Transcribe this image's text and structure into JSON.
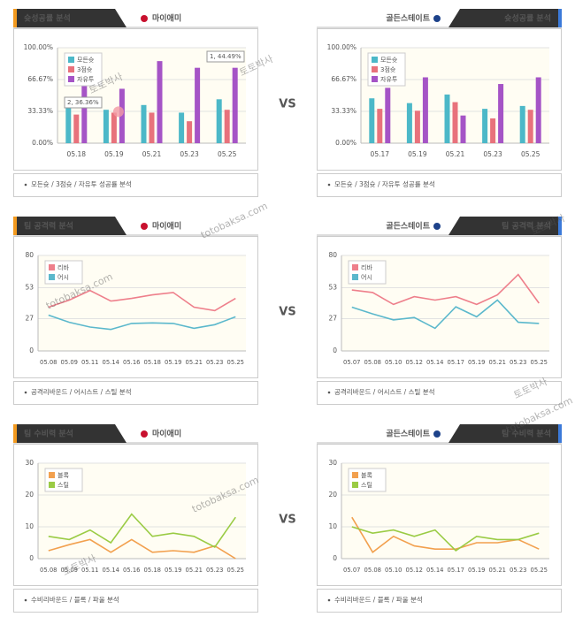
{
  "vs": "VS",
  "watermarks": [
    "토토박사",
    "totobaksa.com"
  ],
  "chart_data": [
    {
      "type": "bar",
      "title": "슛성공률 분석",
      "team": "마이애미",
      "footer": "모든슛 / 3점슛 / 자유투 성공률 분석",
      "categories": [
        "05.18",
        "05.19",
        "05.21",
        "05.23",
        "05.25"
      ],
      "series": [
        {
          "name": "모든슛",
          "color": "#4cb8c8",
          "values": [
            39,
            35,
            40,
            32,
            46
          ]
        },
        {
          "name": "3점슛",
          "color": "#e8727c",
          "values": [
            30,
            32,
            32,
            23,
            35
          ]
        },
        {
          "name": "자유투",
          "color": "#a554c6",
          "values": [
            62,
            57,
            86,
            79,
            79
          ]
        }
      ],
      "annotations": [
        "2, 36.36%",
        "1, 44.49%"
      ],
      "ylim": [
        0,
        100
      ],
      "yticks": [
        {
          "value": 0,
          "label": "0.00%"
        },
        {
          "value": 33.33,
          "label": "33.33%"
        },
        {
          "value": 66.67,
          "label": "66.67%"
        },
        {
          "value": 100,
          "label": "100.00%"
        }
      ],
      "grid": true
    },
    {
      "type": "bar",
      "title": "슛성공률 분석",
      "team": "골든스테이트",
      "footer": "모든슛 / 3점슛 / 자유투 성공률 분석",
      "categories": [
        "05.17",
        "05.19",
        "05.21",
        "05.23",
        "05.25"
      ],
      "series": [
        {
          "name": "모든슛",
          "color": "#4cb8c8",
          "values": [
            47,
            42,
            51,
            36,
            39
          ]
        },
        {
          "name": "3점슛",
          "color": "#e8727c",
          "values": [
            36,
            34,
            43,
            26,
            35
          ]
        },
        {
          "name": "자유투",
          "color": "#a554c6",
          "values": [
            58,
            69,
            29,
            62,
            69
          ]
        }
      ],
      "ylim": [
        0,
        100
      ],
      "yticks": [
        {
          "value": 0,
          "label": "0.00%"
        },
        {
          "value": 33.33,
          "label": "33.33%"
        },
        {
          "value": 66.67,
          "label": "66.67%"
        },
        {
          "value": 100,
          "label": "100.00%"
        }
      ],
      "grid": true
    },
    {
      "type": "line",
      "title": "팀 공격력 분석",
      "team": "마이애미",
      "footer": "공격리바운드 / 어시스트 / 스틸 분석",
      "categories": [
        "05.08",
        "05.09",
        "05.11",
        "05.14",
        "05.16",
        "05.18",
        "05.19",
        "05.21",
        "05.23",
        "05.25"
      ],
      "series": [
        {
          "name": "리바",
          "color": "#ee7f8b",
          "values": [
            36.7,
            42.6,
            50.6,
            41.8,
            44,
            47,
            49,
            36.7,
            33.8,
            44
          ]
        },
        {
          "name": "어시",
          "color": "#5bb8cc",
          "values": [
            30,
            24,
            20,
            18,
            23,
            23.5,
            23,
            19,
            22,
            28.6
          ]
        }
      ],
      "ylim": [
        0,
        80
      ],
      "yticks": [
        0,
        27,
        53,
        80
      ],
      "grid": true
    },
    {
      "type": "line",
      "title": "팀 공격력 분석",
      "team": "골든스테이트",
      "footer": "공격리바운드 / 어시스트 / 스틸 분석",
      "categories": [
        "05.07",
        "05.08",
        "05.10",
        "05.12",
        "05.14",
        "05.17",
        "05.19",
        "05.21",
        "05.23",
        "05.25"
      ],
      "series": [
        {
          "name": "리바",
          "color": "#ee7f8b",
          "values": [
            51,
            49,
            39,
            45.5,
            42.6,
            45.5,
            39,
            47,
            64,
            40
          ]
        },
        {
          "name": "어시",
          "color": "#5bb8cc",
          "values": [
            36.7,
            31,
            26,
            28,
            19,
            37,
            28.6,
            42.6,
            24,
            23
          ]
        }
      ],
      "ylim": [
        0,
        80
      ],
      "yticks": [
        0,
        27,
        53,
        80
      ],
      "grid": true
    },
    {
      "type": "line",
      "title": "팀 수비력 분석",
      "team": "마이애미",
      "footer": "수비리바운드 / 블록 / 파울 분석",
      "categories": [
        "05.08",
        "05.09",
        "05.11",
        "05.14",
        "05.16",
        "05.18",
        "05.19",
        "05.21",
        "05.23",
        "05.25"
      ],
      "series": [
        {
          "name": "블록",
          "color": "#f2a04e",
          "values": [
            2.5,
            4.4,
            6,
            2,
            6,
            2,
            2.5,
            2,
            4,
            0
          ]
        },
        {
          "name": "스틸",
          "color": "#9acb44",
          "values": [
            7,
            6,
            9,
            5,
            14,
            7,
            8,
            7,
            3.6,
            13
          ]
        }
      ],
      "ylim": [
        0,
        30
      ],
      "yticks": [
        0,
        10,
        20,
        30
      ],
      "grid": true
    },
    {
      "type": "line",
      "title": "팀 수비력 분석",
      "team": "골든스테이트",
      "footer": "수비리바운드 / 블록 / 파울 분석",
      "categories": [
        "05.07",
        "05.08",
        "05.10",
        "05.12",
        "05.14",
        "05.17",
        "05.19",
        "05.21",
        "05.23",
        "05.25"
      ],
      "series": [
        {
          "name": "블록",
          "color": "#f2a04e",
          "values": [
            13,
            2,
            7,
            4,
            3,
            3,
            5,
            5,
            6,
            3
          ]
        },
        {
          "name": "스틸",
          "color": "#9acb44",
          "values": [
            10,
            8,
            9,
            7,
            9,
            2.5,
            7,
            6,
            6,
            8
          ]
        }
      ],
      "ylim": [
        0,
        30
      ],
      "yticks": [
        0,
        10,
        20,
        30
      ],
      "grid": true
    }
  ]
}
